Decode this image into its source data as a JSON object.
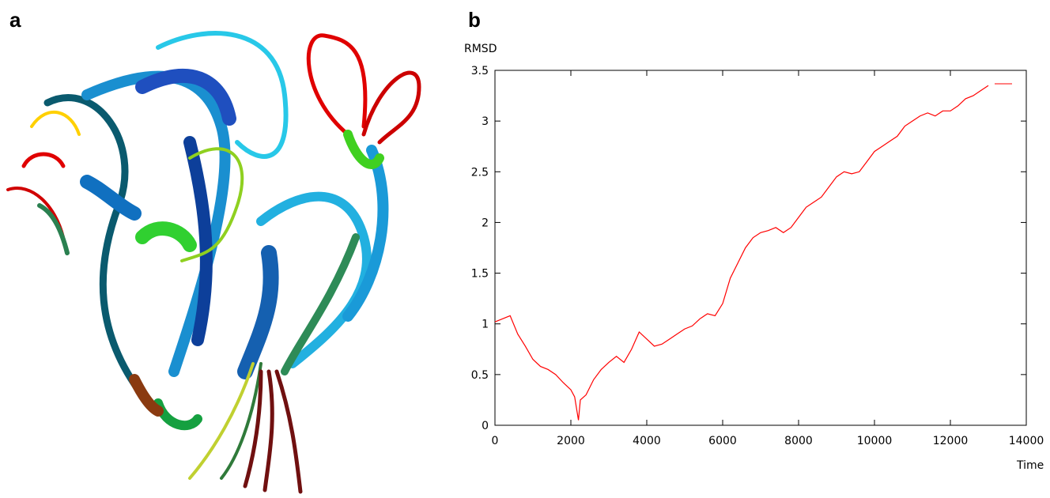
{
  "panels": [
    {
      "label": "a"
    },
    {
      "label": "b"
    }
  ],
  "chart_data": {
    "type": "line",
    "y_label": "RMSD",
    "x_label": "Time",
    "xlim": [
      0,
      14000
    ],
    "ylim": [
      0,
      3.5
    ],
    "xticks": [
      0,
      2000,
      4000,
      6000,
      8000,
      10000,
      12000,
      14000
    ],
    "yticks": [
      0,
      0.5,
      1,
      1.5,
      2,
      2.5,
      3,
      3.5
    ],
    "grid": false,
    "x": [
      0,
      200,
      400,
      600,
      800,
      1000,
      1200,
      1400,
      1600,
      1800,
      2000,
      2100,
      2200,
      2250,
      2400,
      2600,
      2800,
      3000,
      3200,
      3400,
      3600,
      3800,
      4000,
      4200,
      4400,
      4600,
      4800,
      5000,
      5200,
      5400,
      5600,
      5800,
      6000,
      6200,
      6400,
      6600,
      6800,
      7000,
      7200,
      7400,
      7600,
      7800,
      8000,
      8200,
      8400,
      8600,
      8800,
      9000,
      9200,
      9400,
      9600,
      9800,
      10000,
      10200,
      10400,
      10600,
      10800,
      11000,
      11200,
      11400,
      11600,
      11800,
      12000,
      12200,
      12400,
      12600,
      12800,
      13000
    ],
    "series": [
      {
        "color": "#ff0000",
        "values": [
          1.02,
          1.05,
          1.08,
          0.9,
          0.78,
          0.65,
          0.58,
          0.55,
          0.5,
          0.42,
          0.35,
          0.28,
          0.05,
          0.25,
          0.3,
          0.45,
          0.55,
          0.62,
          0.68,
          0.62,
          0.75,
          0.92,
          0.85,
          0.78,
          0.8,
          0.85,
          0.9,
          0.95,
          0.98,
          1.05,
          1.1,
          1.08,
          1.2,
          1.45,
          1.6,
          1.75,
          1.85,
          1.9,
          1.92,
          1.95,
          1.9,
          1.95,
          2.05,
          2.15,
          2.2,
          2.25,
          2.35,
          2.45,
          2.5,
          2.48,
          2.5,
          2.6,
          2.7,
          2.75,
          2.8,
          2.85,
          2.95,
          3.0,
          3.05,
          3.08,
          3.05,
          3.1,
          3.1,
          3.15,
          3.22,
          3.25,
          3.3,
          3.35
        ]
      }
    ]
  }
}
